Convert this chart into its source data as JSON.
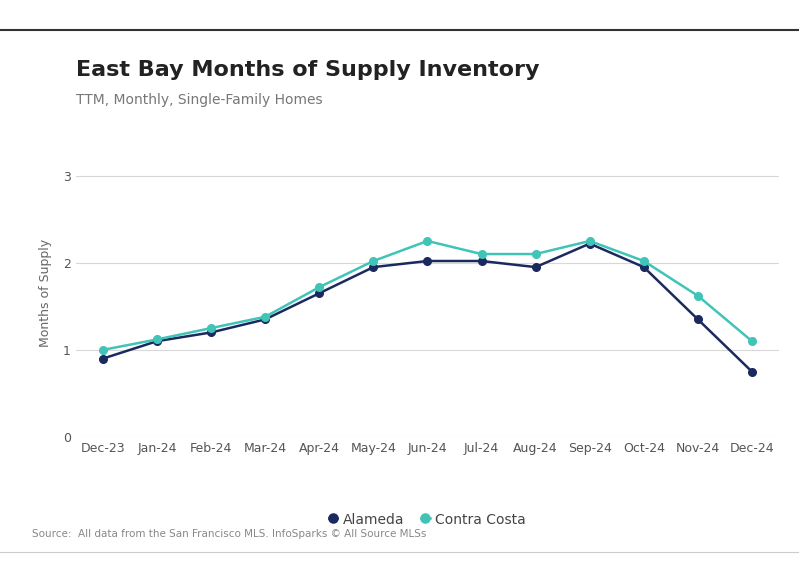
{
  "title": "East Bay Months of Supply Inventory",
  "subtitle": "TTM, Monthly, Single-Family Homes",
  "ylabel": "Months of Supply",
  "source": "Source:  All data from the San Francisco MLS. InfoSparks © All Source MLSs",
  "x_labels": [
    "Dec-23",
    "Jan-24",
    "Feb-24",
    "Mar-24",
    "Apr-24",
    "May-24",
    "Jun-24",
    "Jul-24",
    "Aug-24",
    "Sep-24",
    "Oct-24",
    "Nov-24",
    "Dec-24"
  ],
  "alameda": [
    0.9,
    1.1,
    1.2,
    1.35,
    1.65,
    1.95,
    2.02,
    2.02,
    1.95,
    2.22,
    1.95,
    1.35,
    0.75
  ],
  "contra_costa": [
    1.0,
    1.12,
    1.25,
    1.38,
    1.72,
    2.02,
    2.25,
    2.1,
    2.1,
    2.25,
    2.02,
    1.62,
    1.1
  ],
  "alameda_color": "#1b2a5e",
  "contra_costa_color": "#40c4b8",
  "ylim": [
    0,
    3.3
  ],
  "yticks": [
    0,
    1,
    2,
    3
  ],
  "background_color": "#ffffff",
  "grid_color": "#d8d8d8",
  "title_fontsize": 16,
  "subtitle_fontsize": 10,
  "axis_label_fontsize": 9,
  "tick_fontsize": 9,
  "legend_fontsize": 10,
  "source_fontsize": 7.5
}
